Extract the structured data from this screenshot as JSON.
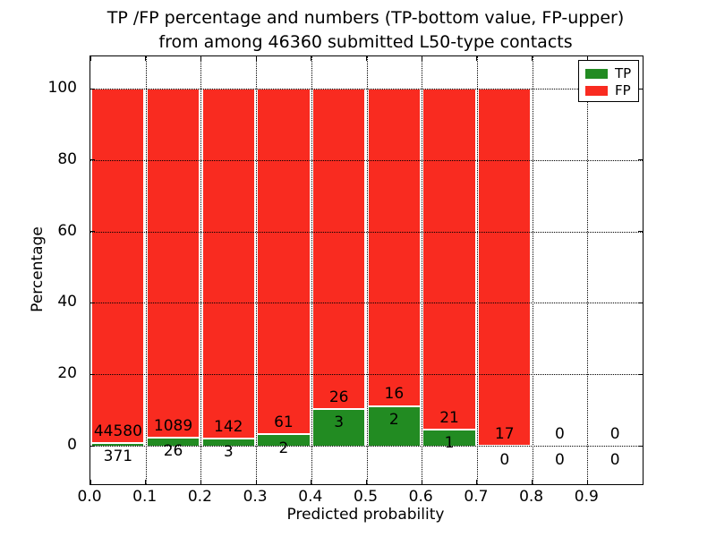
{
  "chart_data": {
    "type": "bar",
    "stacked": true,
    "normalized_to_percent": true,
    "title": "TP /FP percentage and numbers (TP-bottom value, FP-upper) from among 46360 submitted L50-type contacts",
    "title_line1": "TP /FP percentage and numbers (TP-bottom value, FP-upper)",
    "title_line2": "from among 46360 submitted L50-type contacts",
    "xlabel": "Predicted probability",
    "ylabel": "Percentage",
    "xlim": [
      0.0,
      1.0
    ],
    "ylim": [
      -10.8,
      109.0
    ],
    "bin_width": 0.1,
    "categories": [
      "0.0-0.1",
      "0.1-0.2",
      "0.2-0.3",
      "0.3-0.4",
      "0.4-0.5",
      "0.5-0.6",
      "0.6-0.7",
      "0.7-0.8",
      "0.8-0.9",
      "0.9-1.0"
    ],
    "x_tick_labels": [
      "0.0",
      "0.1",
      "0.2",
      "0.3",
      "0.4",
      "0.5",
      "0.6",
      "0.7",
      "0.8",
      "0.9"
    ],
    "y_tick_labels": [
      "0",
      "20",
      "40",
      "60",
      "80",
      "100"
    ],
    "grid": "dotted-both-axes-on-top",
    "legend_position": "upper right",
    "total_contacts": 46360,
    "series": [
      {
        "name": "TP",
        "color": "#228b22",
        "values": [
          371,
          26,
          3,
          2,
          3,
          2,
          1,
          0,
          0,
          0
        ]
      },
      {
        "name": "FP",
        "color": "#f92b20",
        "values": [
          44580,
          1089,
          142,
          61,
          26,
          16,
          21,
          17,
          0,
          0
        ]
      }
    ],
    "bar_edge_color": "#ffffff",
    "annotation_rule": "FP count printed above TP segment top, TP count printed below TP segment top; bars are percentage shares of each bin summing to 100"
  }
}
